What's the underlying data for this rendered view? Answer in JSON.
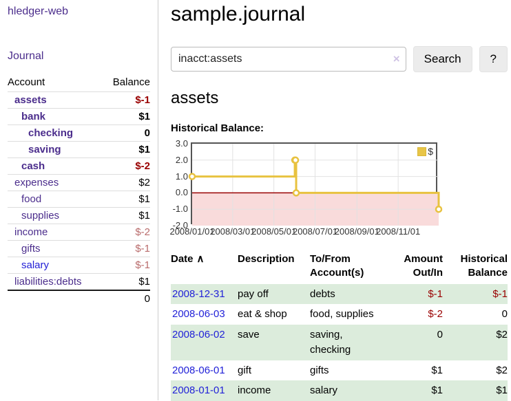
{
  "sidebar": {
    "brand": "hledger-web",
    "nav": {
      "journal": "Journal"
    },
    "accounts_table": {
      "headers": {
        "account": "Account",
        "balance": "Balance"
      },
      "rows": [
        {
          "account": "assets",
          "balance": "$-1"
        },
        {
          "account": "bank",
          "balance": "$1"
        },
        {
          "account": "checking",
          "balance": "0"
        },
        {
          "account": "saving",
          "balance": "$1"
        },
        {
          "account": "cash",
          "balance": "$-2"
        },
        {
          "account": "expenses",
          "balance": "$2"
        },
        {
          "account": "food",
          "balance": "$1"
        },
        {
          "account": "supplies",
          "balance": "$1"
        },
        {
          "account": "income",
          "balance": "$-2"
        },
        {
          "account": "gifts",
          "balance": "$-1"
        },
        {
          "account": "salary",
          "balance": "$-1"
        },
        {
          "account": "liabilities:debts",
          "balance": "$1"
        }
      ],
      "total": "0"
    }
  },
  "main": {
    "title": "sample.journal",
    "search": {
      "value": "inacct:assets",
      "clear_icon": "×",
      "button": "Search",
      "help_button": "?"
    },
    "account_heading": "assets",
    "chart_label": "Historical Balance:"
  },
  "chart_data": {
    "type": "line",
    "title": "Historical Balance:",
    "step": true,
    "legend": {
      "label": "$",
      "position": "top-right"
    },
    "xlim_days": [
      0,
      365
    ],
    "ylim": [
      -2,
      3
    ],
    "grid": true,
    "series": [
      {
        "name": "$",
        "points": [
          {
            "date": "2008-01-01",
            "day": 0,
            "value": 1
          },
          {
            "date": "2008-06-01",
            "day": 152,
            "value": 2
          },
          {
            "date": "2008-06-02",
            "day": 153,
            "value": 2
          },
          {
            "date": "2008-06-03",
            "day": 154,
            "value": 0
          },
          {
            "date": "2008-12-31",
            "day": 365,
            "value": -1
          }
        ]
      }
    ],
    "x_ticks": [
      {
        "day": 0,
        "label": "2008/01/01"
      },
      {
        "day": 60,
        "label": "2008/03/01"
      },
      {
        "day": 121,
        "label": "2008/05/01"
      },
      {
        "day": 182,
        "label": "2008/07/01"
      },
      {
        "day": 244,
        "label": "2008/09/01"
      },
      {
        "day": 305,
        "label": "2008/11/01"
      }
    ],
    "y_ticks": [
      {
        "value": 3,
        "label": "3.0"
      },
      {
        "value": 2,
        "label": "2.0"
      },
      {
        "value": 1,
        "label": "1.0"
      },
      {
        "value": 0,
        "label": "0.0"
      },
      {
        "value": -1,
        "label": "-1.0"
      },
      {
        "value": -2,
        "label": "-2.0"
      }
    ],
    "colors": {
      "line": "#e8c240",
      "marker_fill": "#ffffff",
      "negative_region": "#f9dbdb",
      "zero_line": "#990000",
      "border": "#545454",
      "grid": "#e2e2e2"
    }
  },
  "register": {
    "headers": {
      "date": "Date",
      "sort_icon": "∧",
      "description": "Description",
      "tofrom": "To/From\nAccount(s)",
      "amount": "Amount\nOut/In",
      "balance": "Historical\nBalance"
    },
    "rows": [
      {
        "date": "2008-12-31",
        "description": "pay off",
        "accounts": "debts",
        "amount": "$-1",
        "balance": "$-1"
      },
      {
        "date": "2008-06-03",
        "description": "eat & shop",
        "accounts": "food, supplies",
        "amount": "$-2",
        "balance": "0"
      },
      {
        "date": "2008-06-02",
        "description": "save",
        "accounts": "saving, checking",
        "amount": "0",
        "balance": "$2"
      },
      {
        "date": "2008-06-01",
        "description": "gift",
        "accounts": "gifts",
        "amount": "$1",
        "balance": "$2"
      },
      {
        "date": "2008-01-01",
        "description": "income",
        "accounts": "salary",
        "amount": "$1",
        "balance": "$1"
      }
    ]
  }
}
